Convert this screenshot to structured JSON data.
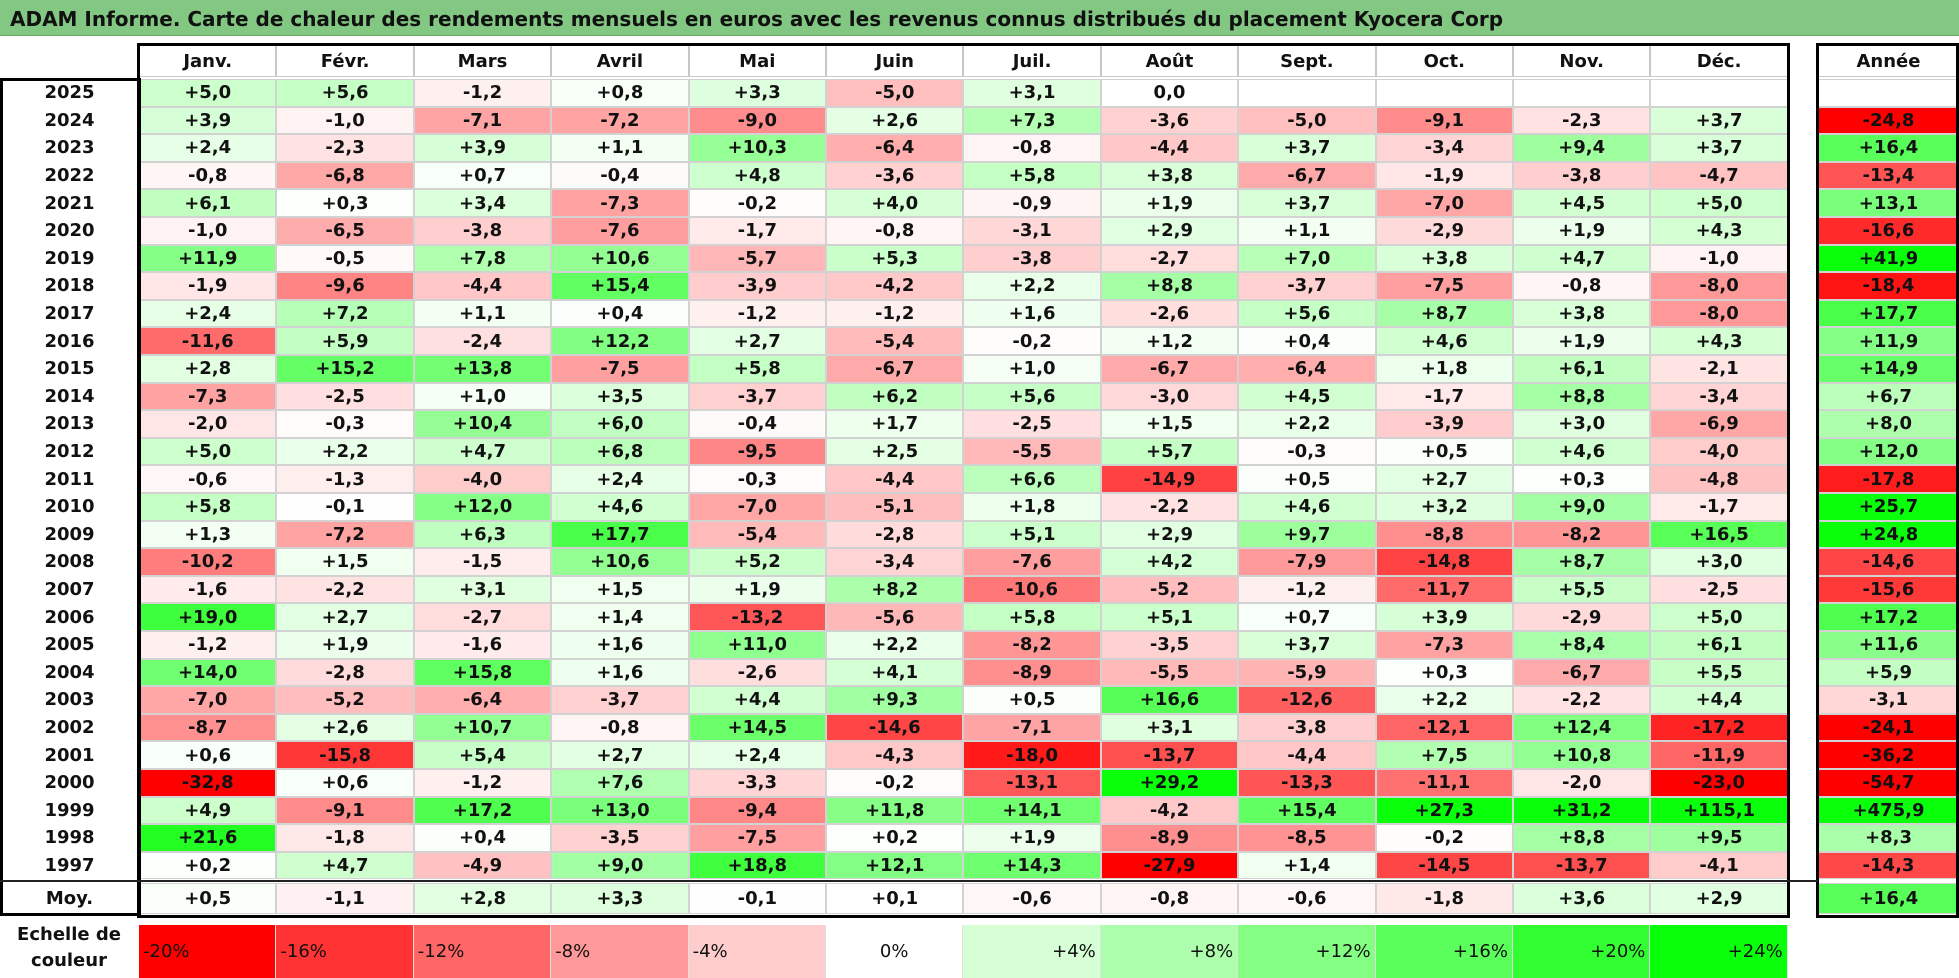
{
  "chart_data": {
    "type": "heatmap",
    "title": "ADAM Informe. Carte de chaleur des rendements mensuels en euros avec les revenus connus distribués du placement Kyocera Corp",
    "months": [
      "Janv.",
      "Févr.",
      "Mars",
      "Avril",
      "Mai",
      "Juin",
      "Juil.",
      "Août",
      "Sept.",
      "Oct.",
      "Nov.",
      "Déc."
    ],
    "year_column_label": "Année",
    "average_row_label": "Moy.",
    "rows": [
      {
        "year": "2025",
        "values": [
          5.0,
          5.6,
          -1.2,
          0.8,
          3.3,
          -5.0,
          3.1,
          0.0,
          null,
          null,
          null,
          null
        ],
        "annual": null
      },
      {
        "year": "2024",
        "values": [
          3.9,
          -1.0,
          -7.1,
          -7.2,
          -9.0,
          2.6,
          7.3,
          -3.6,
          -5.0,
          -9.1,
          -2.3,
          3.7
        ],
        "annual": -24.8
      },
      {
        "year": "2023",
        "values": [
          2.4,
          -2.3,
          3.9,
          1.1,
          10.3,
          -6.4,
          -0.8,
          -4.4,
          3.7,
          -3.4,
          9.4,
          3.7
        ],
        "annual": 16.4
      },
      {
        "year": "2022",
        "values": [
          -0.8,
          -6.8,
          0.7,
          -0.4,
          4.8,
          -3.6,
          5.8,
          3.8,
          -6.7,
          -1.9,
          -3.8,
          -4.7
        ],
        "annual": -13.4
      },
      {
        "year": "2021",
        "values": [
          6.1,
          0.3,
          3.4,
          -7.3,
          -0.2,
          4.0,
          -0.9,
          1.9,
          3.7,
          -7.0,
          4.5,
          5.0
        ],
        "annual": 13.1
      },
      {
        "year": "2020",
        "values": [
          -1.0,
          -6.5,
          -3.8,
          -7.6,
          -1.7,
          -0.8,
          -3.1,
          2.9,
          1.1,
          -2.9,
          1.9,
          4.3
        ],
        "annual": -16.6
      },
      {
        "year": "2019",
        "values": [
          11.9,
          -0.5,
          7.8,
          10.6,
          -5.7,
          5.3,
          -3.8,
          -2.7,
          7.0,
          3.8,
          4.7,
          -1.0
        ],
        "annual": 41.9
      },
      {
        "year": "2018",
        "values": [
          -1.9,
          -9.6,
          -4.4,
          15.4,
          -3.9,
          -4.2,
          2.2,
          8.8,
          -3.7,
          -7.5,
          -0.8,
          -8.0
        ],
        "annual": -18.4
      },
      {
        "year": "2017",
        "values": [
          2.4,
          7.2,
          1.1,
          0.4,
          -1.2,
          -1.2,
          1.6,
          -2.6,
          5.6,
          8.7,
          3.8,
          -8.0
        ],
        "annual": 17.7
      },
      {
        "year": "2016",
        "values": [
          -11.6,
          5.9,
          -2.4,
          12.2,
          2.7,
          -5.4,
          -0.2,
          1.2,
          0.4,
          4.6,
          1.9,
          4.3
        ],
        "annual": 11.9
      },
      {
        "year": "2015",
        "values": [
          2.8,
          15.2,
          13.8,
          -7.5,
          5.8,
          -6.7,
          1.0,
          -6.7,
          -6.4,
          1.8,
          6.1,
          -2.1
        ],
        "annual": 14.9
      },
      {
        "year": "2014",
        "values": [
          -7.3,
          -2.5,
          1.0,
          3.5,
          -3.7,
          6.2,
          5.6,
          -3.0,
          4.5,
          -1.7,
          8.8,
          -3.4
        ],
        "annual": 6.7
      },
      {
        "year": "2013",
        "values": [
          -2.0,
          -0.3,
          10.4,
          6.0,
          -0.4,
          1.7,
          -2.5,
          1.5,
          2.2,
          -3.9,
          3.0,
          -6.9
        ],
        "annual": 8.0
      },
      {
        "year": "2012",
        "values": [
          5.0,
          2.2,
          4.7,
          6.8,
          -9.5,
          2.5,
          -5.5,
          5.7,
          -0.3,
          0.5,
          4.6,
          -4.0
        ],
        "annual": 12.0
      },
      {
        "year": "2011",
        "values": [
          -0.6,
          -1.3,
          -4.0,
          2.4,
          -0.3,
          -4.4,
          6.6,
          -14.9,
          0.5,
          2.7,
          0.3,
          -4.8
        ],
        "annual": -17.8
      },
      {
        "year": "2010",
        "values": [
          5.8,
          -0.1,
          12.0,
          4.6,
          -7.0,
          -5.1,
          1.8,
          -2.2,
          4.6,
          3.2,
          9.0,
          -1.7
        ],
        "annual": 25.7
      },
      {
        "year": "2009",
        "values": [
          1.3,
          -7.2,
          6.3,
          17.7,
          -5.4,
          -2.8,
          5.1,
          2.9,
          9.7,
          -8.8,
          -8.2,
          16.5
        ],
        "annual": 24.8
      },
      {
        "year": "2008",
        "values": [
          -10.2,
          1.5,
          -1.5,
          10.6,
          5.2,
          -3.4,
          -7.6,
          4.2,
          -7.9,
          -14.8,
          8.7,
          3.0
        ],
        "annual": -14.6
      },
      {
        "year": "2007",
        "values": [
          -1.6,
          -2.2,
          3.1,
          1.5,
          1.9,
          8.2,
          -10.6,
          -5.2,
          -1.2,
          -11.7,
          5.5,
          -2.5
        ],
        "annual": -15.6
      },
      {
        "year": "2006",
        "values": [
          19.0,
          2.7,
          -2.7,
          1.4,
          -13.2,
          -5.6,
          5.8,
          5.1,
          0.7,
          3.9,
          -2.9,
          5.0
        ],
        "annual": 17.2
      },
      {
        "year": "2005",
        "values": [
          -1.2,
          1.9,
          -1.6,
          1.6,
          11.0,
          2.2,
          -8.2,
          -3.5,
          3.7,
          -7.3,
          8.4,
          6.1
        ],
        "annual": 11.6
      },
      {
        "year": "2004",
        "values": [
          14.0,
          -2.8,
          15.8,
          1.6,
          -2.6,
          4.1,
          -8.9,
          -5.5,
          -5.9,
          0.3,
          -6.7,
          5.5
        ],
        "annual": 5.9
      },
      {
        "year": "2003",
        "values": [
          -7.0,
          -5.2,
          -6.4,
          -3.7,
          4.4,
          9.3,
          0.5,
          16.6,
          -12.6,
          2.2,
          -2.2,
          4.4
        ],
        "annual": -3.1
      },
      {
        "year": "2002",
        "values": [
          -8.7,
          2.6,
          10.7,
          -0.8,
          14.5,
          -14.6,
          -7.1,
          3.1,
          -3.8,
          -12.1,
          12.4,
          -17.2
        ],
        "annual": -24.1
      },
      {
        "year": "2001",
        "values": [
          0.6,
          -15.8,
          5.4,
          2.7,
          2.4,
          -4.3,
          -18.0,
          -13.7,
          -4.4,
          7.5,
          10.8,
          -11.9
        ],
        "annual": -36.2
      },
      {
        "year": "2000",
        "values": [
          -32.8,
          0.6,
          -1.2,
          7.6,
          -3.3,
          -0.2,
          -13.1,
          29.2,
          -13.3,
          -11.1,
          -2.0,
          -23.0
        ],
        "annual": -54.7
      },
      {
        "year": "1999",
        "values": [
          4.9,
          -9.1,
          17.2,
          13.0,
          -9.4,
          11.8,
          14.1,
          -4.2,
          15.4,
          27.3,
          31.2,
          115.1
        ],
        "annual": 475.9
      },
      {
        "year": "1998",
        "values": [
          21.6,
          -1.8,
          0.4,
          -3.5,
          -7.5,
          0.2,
          1.9,
          -8.9,
          -8.5,
          -0.2,
          8.8,
          9.5
        ],
        "annual": 8.3
      },
      {
        "year": "1997",
        "values": [
          0.2,
          4.7,
          -4.9,
          9.0,
          18.8,
          12.1,
          14.3,
          -27.9,
          1.4,
          -14.5,
          -13.7,
          -4.1
        ],
        "annual": -14.3
      }
    ],
    "averages": {
      "values": [
        0.5,
        -1.1,
        2.8,
        3.3,
        -0.1,
        0.1,
        -0.6,
        -0.8,
        -0.6,
        -1.8,
        3.6,
        2.9
      ],
      "annual": 16.4
    },
    "color_scale": {
      "label": "Echelle de couleur",
      "stops": [
        {
          "label": "-20%",
          "value": -20,
          "color": "#ff0000"
        },
        {
          "label": "-16%",
          "value": -16,
          "color": "#ff3333"
        },
        {
          "label": "-12%",
          "value": -12,
          "color": "#ff6666"
        },
        {
          "label": "-8%",
          "value": -8,
          "color": "#ff9999"
        },
        {
          "label": "-4%",
          "value": -4,
          "color": "#ffcccc"
        },
        {
          "label": "0%",
          "value": 0,
          "color": "#ffffff"
        },
        {
          "label": "+4%",
          "value": 4,
          "color": "#d6ffd6"
        },
        {
          "label": "+8%",
          "value": 8,
          "color": "#adffad"
        },
        {
          "label": "+12%",
          "value": 12,
          "color": "#84ff84"
        },
        {
          "label": "+16%",
          "value": 16,
          "color": "#5bff5b"
        },
        {
          "label": "+20%",
          "value": 20,
          "color": "#32ff32"
        },
        {
          "label": "+24%",
          "value": 24,
          "color": "#0aff0a"
        }
      ]
    }
  }
}
